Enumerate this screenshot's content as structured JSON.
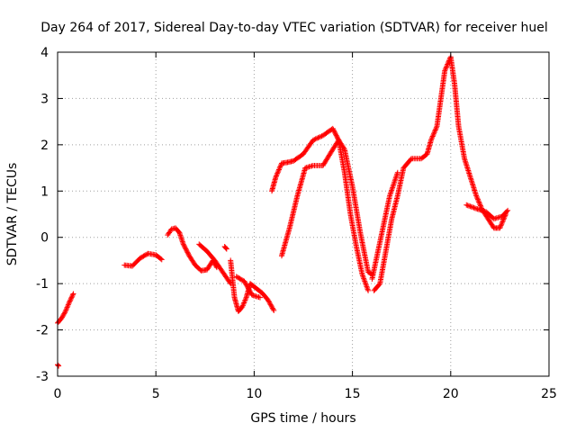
{
  "chart_data": {
    "type": "scatter",
    "title": "Day 264 of 2017, Sidereal Day-to-day VTEC variation (SDTVAR) for receiver huel",
    "xlabel": "GPS time / hours",
    "ylabel": "SDTVAR / TECUs",
    "xlim": [
      0,
      25
    ],
    "ylim": [
      -3,
      4
    ],
    "x_ticks": [
      0,
      5,
      10,
      15,
      20,
      25
    ],
    "y_ticks": [
      -3,
      -2,
      -1,
      0,
      1,
      2,
      3,
      4
    ],
    "grid": true,
    "marker": "+",
    "series": [
      {
        "name": "SDTVAR",
        "color": "#ff0000",
        "segments": [
          [
            [
              0.0,
              -2.75
            ],
            [
              0.05,
              -2.78
            ]
          ],
          [
            [
              0.0,
              -1.85
            ],
            [
              0.2,
              -1.75
            ],
            [
              0.4,
              -1.6
            ],
            [
              0.6,
              -1.4
            ],
            [
              0.8,
              -1.22
            ]
          ],
          [
            [
              3.4,
              -0.6
            ],
            [
              3.8,
              -0.62
            ],
            [
              4.2,
              -0.45
            ],
            [
              4.6,
              -0.35
            ],
            [
              5.0,
              -0.38
            ],
            [
              5.3,
              -0.48
            ]
          ],
          [
            [
              5.6,
              0.05
            ],
            [
              5.8,
              0.18
            ],
            [
              6.0,
              0.2
            ],
            [
              6.2,
              0.1
            ],
            [
              6.4,
              -0.15
            ],
            [
              6.7,
              -0.4
            ],
            [
              7.0,
              -0.6
            ],
            [
              7.3,
              -0.72
            ],
            [
              7.6,
              -0.7
            ],
            [
              7.9,
              -0.5
            ],
            [
              8.1,
              -0.65
            ]
          ],
          [
            [
              7.2,
              -0.15
            ],
            [
              7.6,
              -0.3
            ],
            [
              8.0,
              -0.5
            ],
            [
              8.4,
              -0.75
            ],
            [
              8.8,
              -1.0
            ]
          ],
          [
            [
              8.5,
              -0.2
            ],
            [
              8.6,
              -0.25
            ]
          ],
          [
            [
              8.8,
              -0.5
            ],
            [
              9.0,
              -1.3
            ],
            [
              9.2,
              -1.6
            ],
            [
              9.4,
              -1.5
            ],
            [
              9.6,
              -1.3
            ],
            [
              9.8,
              -1.0
            ],
            [
              10.1,
              -1.1
            ],
            [
              10.4,
              -1.2
            ],
            [
              10.7,
              -1.35
            ],
            [
              11.0,
              -1.58
            ]
          ],
          [
            [
              9.1,
              -0.85
            ],
            [
              9.5,
              -0.95
            ],
            [
              9.9,
              -1.25
            ],
            [
              10.3,
              -1.3
            ]
          ],
          [
            [
              10.9,
              1.0
            ],
            [
              11.1,
              1.3
            ],
            [
              11.4,
              1.6
            ],
            [
              11.7,
              1.62
            ],
            [
              12.0,
              1.65
            ],
            [
              12.5,
              1.8
            ],
            [
              13.0,
              2.1
            ],
            [
              13.5,
              2.2
            ],
            [
              14.0,
              2.35
            ],
            [
              14.3,
              2.1
            ],
            [
              14.6,
              1.4
            ],
            [
              14.9,
              0.5
            ],
            [
              15.2,
              -0.2
            ],
            [
              15.5,
              -0.8
            ],
            [
              15.8,
              -1.15
            ]
          ],
          [
            [
              11.4,
              -0.4
            ],
            [
              11.8,
              0.2
            ],
            [
              12.2,
              0.9
            ],
            [
              12.6,
              1.5
            ],
            [
              13.0,
              1.55
            ],
            [
              13.5,
              1.55
            ],
            [
              14.0,
              1.9
            ],
            [
              14.3,
              2.1
            ],
            [
              14.6,
              1.9
            ],
            [
              15.0,
              1.1
            ],
            [
              15.4,
              0.1
            ],
            [
              15.8,
              -0.75
            ],
            [
              16.0,
              -0.8
            ]
          ],
          [
            [
              16.1,
              -1.15
            ],
            [
              16.4,
              -1.0
            ],
            [
              16.7,
              -0.3
            ],
            [
              17.0,
              0.4
            ],
            [
              17.3,
              0.9
            ],
            [
              17.6,
              1.5
            ],
            [
              18.0,
              1.7
            ],
            [
              18.5,
              1.7
            ],
            [
              18.8,
              1.8
            ],
            [
              19.0,
              2.1
            ],
            [
              19.3,
              2.4
            ],
            [
              19.5,
              3.0
            ],
            [
              19.7,
              3.6
            ],
            [
              20.0,
              3.9
            ],
            [
              20.2,
              3.3
            ],
            [
              20.4,
              2.4
            ],
            [
              20.7,
              1.7
            ],
            [
              21.0,
              1.3
            ],
            [
              21.3,
              0.9
            ],
            [
              21.6,
              0.6
            ],
            [
              21.9,
              0.4
            ],
            [
              22.2,
              0.2
            ],
            [
              22.5,
              0.2
            ],
            [
              22.8,
              0.5
            ]
          ],
          [
            [
              16.0,
              -0.9
            ],
            [
              16.3,
              -0.3
            ],
            [
              16.6,
              0.3
            ],
            [
              16.9,
              0.9
            ],
            [
              17.3,
              1.4
            ]
          ],
          [
            [
              20.8,
              0.7
            ],
            [
              21.3,
              0.62
            ],
            [
              21.8,
              0.55
            ],
            [
              22.2,
              0.4
            ],
            [
              22.6,
              0.45
            ],
            [
              22.9,
              0.58
            ]
          ]
        ]
      }
    ]
  }
}
